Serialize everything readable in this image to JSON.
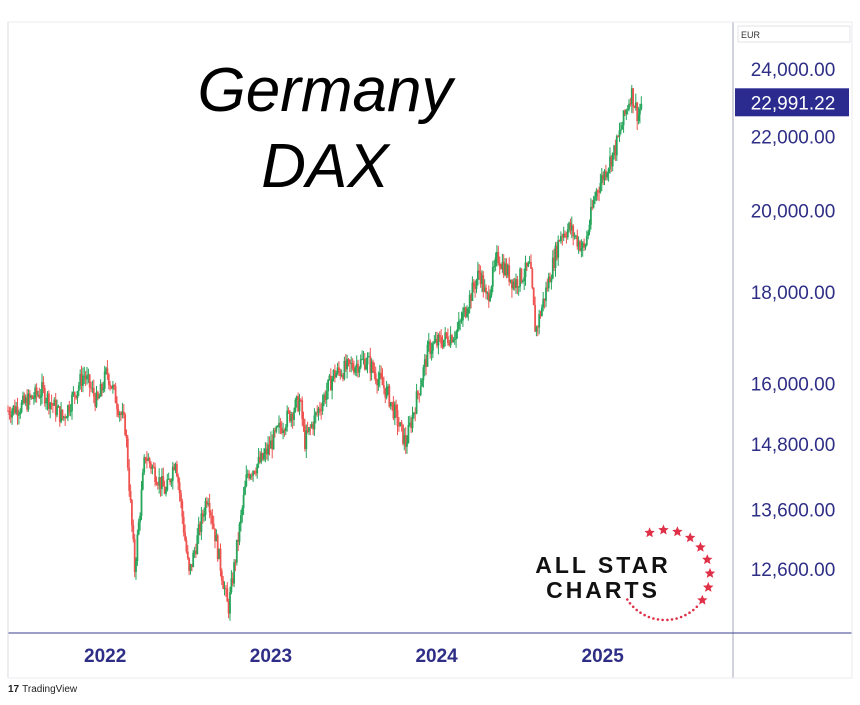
{
  "chart_data": {
    "type": "candlestick",
    "title_line1": "Germany",
    "title_line2": "DAX",
    "currency": "EUR",
    "scale": "log",
    "ylim": [
      11600,
      25500
    ],
    "yticks": [
      {
        "value": 24000,
        "label": "24,000.00"
      },
      {
        "value": 22000,
        "label": "22,000.00"
      },
      {
        "value": 20000,
        "label": "20,000.00"
      },
      {
        "value": 18000,
        "label": "18,000.00"
      },
      {
        "value": 16000,
        "label": "16,000.00"
      },
      {
        "value": 14800,
        "label": "14,800.00"
      },
      {
        "value": 13600,
        "label": "13,600.00"
      },
      {
        "value": 12600,
        "label": "12,600.00"
      }
    ],
    "last_price": {
      "value": 22991.22,
      "label": "22,991.22"
    },
    "xlim": [
      "2021-06-01",
      "2025-10-15"
    ],
    "xticks": [
      {
        "date": "2022-01-01",
        "label": "2022"
      },
      {
        "date": "2023-01-01",
        "label": "2023"
      },
      {
        "date": "2024-01-01",
        "label": "2024"
      },
      {
        "date": "2025-01-01",
        "label": "2025"
      }
    ],
    "price_path": [
      [
        "2021-06-01",
        15450
      ],
      [
        "2021-07-01",
        15550
      ],
      [
        "2021-08-15",
        15850
      ],
      [
        "2021-09-30",
        15300
      ],
      [
        "2021-11-15",
        16200
      ],
      [
        "2021-12-15",
        15600
      ],
      [
        "2022-01-05",
        16250
      ],
      [
        "2022-02-15",
        15100
      ],
      [
        "2022-03-07",
        12600
      ],
      [
        "2022-03-30",
        14600
      ],
      [
        "2022-05-15",
        13900
      ],
      [
        "2022-06-05",
        14550
      ],
      [
        "2022-07-05",
        12500
      ],
      [
        "2022-08-15",
        13900
      ],
      [
        "2022-09-29",
        11950
      ],
      [
        "2022-11-10",
        14250
      ],
      [
        "2022-12-13",
        14500
      ],
      [
        "2023-01-20",
        15100
      ],
      [
        "2023-03-06",
        15650
      ],
      [
        "2023-03-17",
        14850
      ],
      [
        "2023-05-20",
        16200
      ],
      [
        "2023-07-31",
        16500
      ],
      [
        "2023-09-15",
        15800
      ],
      [
        "2023-10-25",
        14800
      ],
      [
        "2023-12-15",
        16750
      ],
      [
        "2024-02-15",
        17100
      ],
      [
        "2024-04-05",
        18500
      ],
      [
        "2024-04-20",
        17800
      ],
      [
        "2024-05-15",
        18850
      ],
      [
        "2024-06-20",
        18200
      ],
      [
        "2024-07-25",
        18600
      ],
      [
        "2024-08-06",
        17100
      ],
      [
        "2024-09-30",
        19400
      ],
      [
        "2024-10-20",
        19550
      ],
      [
        "2024-11-21",
        19000
      ],
      [
        "2024-12-16",
        20450
      ],
      [
        "2025-01-30",
        21700
      ],
      [
        "2025-03-05",
        23300
      ],
      [
        "2025-03-20",
        22600
      ],
      [
        "2025-03-28",
        22991.22
      ]
    ],
    "annotations": [
      "ALL STAR",
      "CHARTS"
    ],
    "source": "TradingView"
  }
}
